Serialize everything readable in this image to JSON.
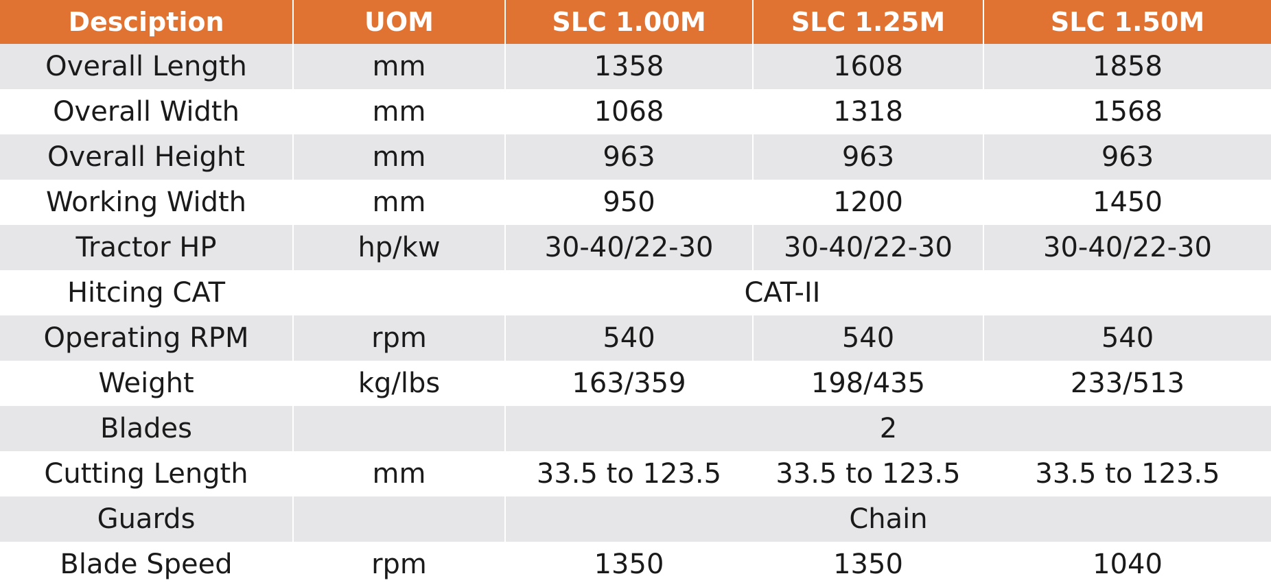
{
  "header": [
    "Desciption",
    "UOM",
    "SLC 1.00M",
    "SLC 1.25M",
    "SLC 1.50M"
  ],
  "rows": [
    {
      "desc": "Overall Length",
      "uom": "mm",
      "v1": "1358",
      "v2": "1608",
      "v3": "1858"
    },
    {
      "desc": "Overall Width",
      "uom": "mm",
      "v1": "1068",
      "v2": "1318",
      "v3": "1568"
    },
    {
      "desc": "Overall Height",
      "uom": "mm",
      "v1": "963",
      "v2": "963",
      "v3": "963"
    },
    {
      "desc": "Working Width",
      "uom": "mm",
      "v1": "950",
      "v2": "1200",
      "v3": "1450"
    },
    {
      "desc": "Tractor HP",
      "uom": "hp/kw",
      "v1": "30-40/22-30",
      "v2": "30-40/22-30",
      "v3": "30-40/22-30"
    },
    {
      "desc": "Hitcing CAT",
      "merged": "CAT-II"
    },
    {
      "desc": "Operating RPM",
      "uom": "rpm",
      "v1": "540",
      "v2": "540",
      "v3": "540"
    },
    {
      "desc": "Weight",
      "uom": "kg/lbs",
      "v1": "163/359",
      "v2": "198/435",
      "v3": "233/513"
    },
    {
      "desc": "Blades",
      "uom": "",
      "merged": "2"
    },
    {
      "desc": "Cutting Length",
      "uom": "mm",
      "v1": "33.5 to 123.5",
      "v2": "33.5 to 123.5",
      "v3": "33.5 to 123.5"
    },
    {
      "desc": "Guards",
      "uom": "",
      "merged": "Chain"
    },
    {
      "desc": "Blade Speed",
      "uom": "rpm",
      "v1": "1350",
      "v2": "1350",
      "v3": "1040"
    }
  ],
  "colors": {
    "header_bg": "#e07232",
    "header_text": "#ffffff",
    "row_shade": "#e6e6e9",
    "row_plain": "#ffffff",
    "text": "#1a1a1a"
  }
}
